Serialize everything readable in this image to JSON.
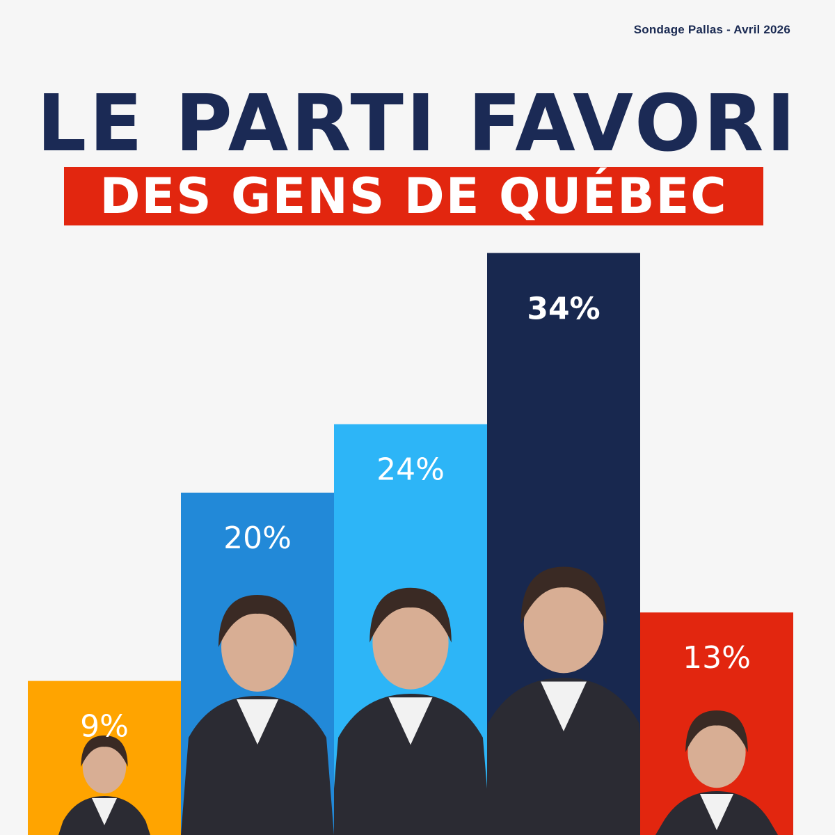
{
  "source": "Sondage Pallas - Avril 2026",
  "title_line1": "LE PARTI FAVORI",
  "title_line2": "DES GENS DE QUÉBEC",
  "chart_data": {
    "type": "bar",
    "ylim": [
      0,
      36
    ],
    "bars": [
      {
        "label": "9%",
        "value": 9,
        "color": "#ffa400"
      },
      {
        "label": "20%",
        "value": 20,
        "color": "#2289d8"
      },
      {
        "label": "24%",
        "value": 24,
        "color": "#2db5f7"
      },
      {
        "label": "34%",
        "value": 34,
        "color": "#18284f"
      },
      {
        "label": "13%",
        "value": 13,
        "color": "#e2260f"
      }
    ]
  }
}
